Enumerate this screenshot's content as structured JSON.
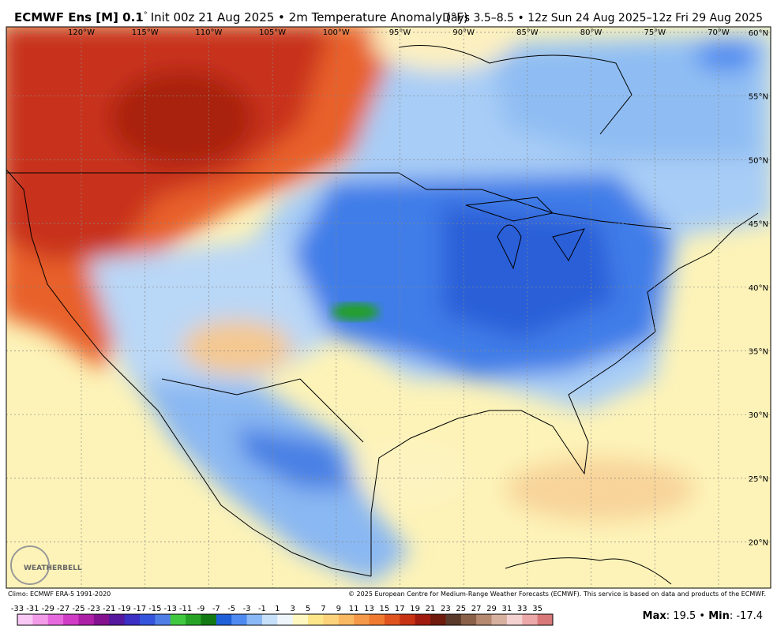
{
  "header": {
    "model": "ECMWF Ens [M] 0.1",
    "deg": "°",
    "init": "Init 00z 21 Aug 2025 • 2m Temperature Anomaly (°F)",
    "period": "Days 3.5–8.5 • 12z Sun 24 Aug 2025–12z Fri 29 Aug 2025"
  },
  "map": {
    "lon_labels": [
      "120°W",
      "115°W",
      "110°W",
      "105°W",
      "100°W",
      "95°W",
      "90°W",
      "85°W",
      "80°W",
      "75°W",
      "70°W"
    ],
    "lat_labels": [
      "60°N",
      "55°N",
      "50°N",
      "45°N",
      "40°N",
      "35°N",
      "30°N",
      "25°N",
      "20°N"
    ],
    "logo": "WEATHERBELL"
  },
  "footer": {
    "climo": "Climo: ECMWF ERA-5 1991-2020",
    "copyright": "© 2025 European Centre for Medium-Range Weather Forecasts (ECMWF). This service is based on data and products of the ECMWF."
  },
  "colorbar": {
    "labels": [
      -33,
      -31,
      -29,
      -27,
      -25,
      -23,
      -21,
      -19,
      -17,
      -15,
      -13,
      -11,
      -9,
      -7,
      -5,
      -3,
      -1,
      1,
      3,
      5,
      7,
      9,
      11,
      13,
      15,
      17,
      19,
      21,
      23,
      25,
      27,
      29,
      31,
      33,
      35
    ],
    "colors": [
      "#f9c8f4",
      "#f29be9",
      "#e66add",
      "#d03cc6",
      "#ad1fa6",
      "#84128f",
      "#55189e",
      "#3b2fc4",
      "#3554dc",
      "#4f7ee6",
      "#41c841",
      "#26a326",
      "#137a13",
      "#1f5fd8",
      "#4f8af0",
      "#8ab8f6",
      "#c6e0fa",
      "#eef5fb",
      "#fff7c0",
      "#fde68a",
      "#fcd27a",
      "#f9b862",
      "#f59a48",
      "#ef7a30",
      "#e0531e",
      "#c83214",
      "#a01a0e",
      "#6e1a0c",
      "#5a3a2a",
      "#8a6048",
      "#b58870",
      "#d8b0a0",
      "#f4d2d2",
      "#eca8a8",
      "#d87878"
    ]
  },
  "stats": {
    "max_label": "Max",
    "max": 19.5,
    "min_label": "Min",
    "min": -17.4
  }
}
